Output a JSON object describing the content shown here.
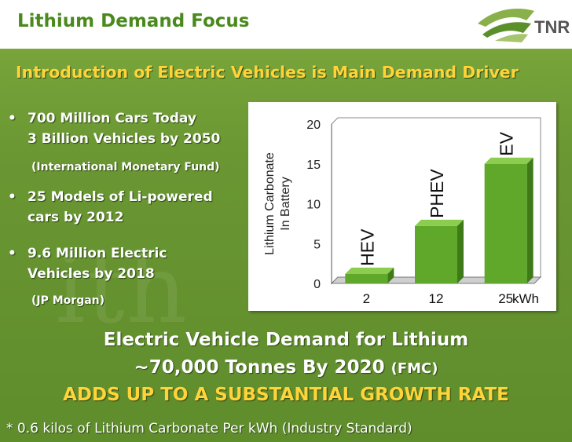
{
  "header": {
    "title": "Lithium Demand Focus",
    "logo_text": "TNR"
  },
  "subtitle": "Introduction of Electric Vehicles is Main Demand Driver",
  "bullets": [
    {
      "line1": "700 Million Cars Today",
      "line2": "3 Billion Vehicles by 2050",
      "source": "(International Monetary Fund)"
    },
    {
      "line1": "25 Models of Li-powered",
      "line2": "cars by 2012",
      "source": ""
    },
    {
      "line1": "9.6 Million Electric",
      "line2": "Vehicles by 2018",
      "source": "(JP Morgan)"
    }
  ],
  "bullet_char": "•",
  "claim": {
    "line1": "Electric Vehicle Demand for Lithium",
    "line2_main": "~70,000 Tonnes By 2020 ",
    "line2_source": "(FMC)",
    "line3": "ADDS UP TO A SUBSTANTIAL GROWTH RATE"
  },
  "footnote": "* 0.6 kilos of Lithium Carbonate Per kWh (Industry Standard)",
  "watermark": "ith",
  "colors": {
    "accent_yellow": "#ffd43a",
    "header_green": "#4a8a1d",
    "bar_green": "#5fa82a"
  },
  "chart_data": {
    "type": "bar",
    "categories": [
      "2",
      "12",
      "25"
    ],
    "values": [
      1.2,
      7.2,
      15
    ],
    "bar_labels": [
      "HEV",
      "PHEV",
      "EV"
    ],
    "x_unit": "kWh",
    "ylabel_line1": "Lithium Carbonate",
    "ylabel_line2": "In Battery",
    "ylim": [
      0,
      20
    ],
    "yticks": [
      0,
      5,
      10,
      15,
      20
    ],
    "grid": false,
    "style": "3d"
  }
}
